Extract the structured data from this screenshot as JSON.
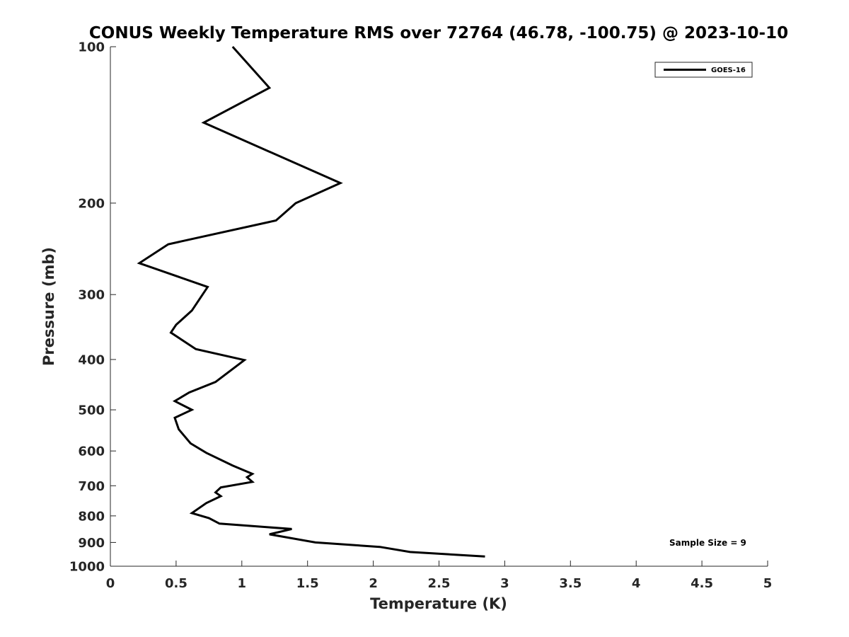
{
  "chart_data": {
    "type": "line",
    "title": "CONUS Weekly Temperature RMS over 72764 (46.78, -100.75) @ 2023-10-10",
    "xlabel": "Temperature (K)",
    "ylabel": "Pressure (mb)",
    "xlim": [
      0,
      5
    ],
    "ylim": [
      100,
      1000
    ],
    "y_scale": "log",
    "y_reversed": true,
    "x_ticks": [
      "0",
      "0.5",
      "1",
      "1.5",
      "2",
      "2.5",
      "3",
      "3.5",
      "4",
      "4.5",
      "5"
    ],
    "y_ticks": [
      "100",
      "200",
      "300",
      "400",
      "500",
      "600",
      "700",
      "800",
      "900",
      "1000"
    ],
    "grid": false,
    "legend_position": "top-right",
    "series": [
      {
        "name": "GOES-16",
        "color": "#000000",
        "points": [
          [
            0.93,
            100
          ],
          [
            1.21,
            120
          ],
          [
            0.71,
            140
          ],
          [
            1.75,
            183
          ],
          [
            1.41,
            200
          ],
          [
            1.26,
            216
          ],
          [
            0.44,
            240
          ],
          [
            0.22,
            261
          ],
          [
            0.74,
            290
          ],
          [
            0.62,
            322
          ],
          [
            0.5,
            343
          ],
          [
            0.46,
            355
          ],
          [
            0.65,
            382
          ],
          [
            1.02,
            401
          ],
          [
            0.8,
            442
          ],
          [
            0.6,
            463
          ],
          [
            0.49,
            481
          ],
          [
            0.62,
            500
          ],
          [
            0.49,
            518
          ],
          [
            0.52,
            545
          ],
          [
            0.61,
            580
          ],
          [
            0.73,
            605
          ],
          [
            0.93,
            640
          ],
          [
            1.08,
            664
          ],
          [
            1.04,
            674
          ],
          [
            1.08,
            688
          ],
          [
            0.84,
            705
          ],
          [
            0.8,
            721
          ],
          [
            0.84,
            733
          ],
          [
            0.73,
            756
          ],
          [
            0.62,
            790
          ],
          [
            0.75,
            808
          ],
          [
            0.83,
            828
          ],
          [
            1.38,
            848
          ],
          [
            1.21,
            868
          ],
          [
            1.56,
            900
          ],
          [
            2.05,
            918
          ],
          [
            2.28,
            939
          ],
          [
            2.85,
            958
          ]
        ]
      }
    ],
    "annotation": "Sample Size = 9"
  }
}
